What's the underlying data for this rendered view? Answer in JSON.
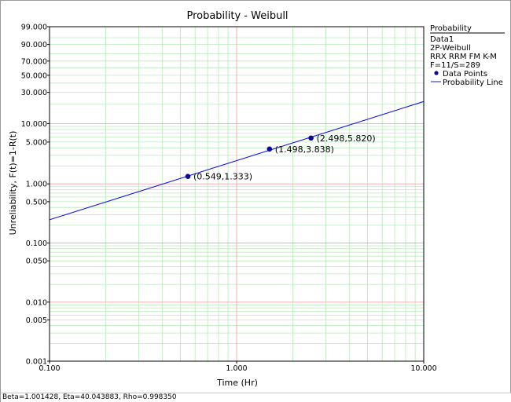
{
  "chart_data": {
    "type": "line",
    "title": "Probability - Weibull",
    "xlabel": "Time (Hr)",
    "ylabel": "Unreliability, F(t)=1-R(t)",
    "x_scale": "log",
    "y_scale": "weibull",
    "xlim": [
      0.1,
      10
    ],
    "ylim": [
      0.001,
      99
    ],
    "x_ticks": [
      "0.100",
      "1.000",
      "10.000"
    ],
    "y_ticks": [
      "99.000",
      "90.000",
      "70.000",
      "50.000",
      "30.000",
      "10.000",
      "5.000",
      "1.000",
      "0.500",
      "0.100",
      "0.050",
      "0.010",
      "0.005",
      "0.001"
    ],
    "y_tick_values": [
      99,
      90,
      70,
      50,
      30,
      10,
      5,
      1,
      0.5,
      0.1,
      0.05,
      0.01,
      0.005,
      0.001
    ],
    "grid": true,
    "colors": {
      "major_grid": "#f4a6a6",
      "minor_grid": "#b8eab8",
      "series": "#1414e6",
      "points": "#0a0aa0",
      "border": "#000000"
    },
    "series": [
      {
        "name": "Data Points",
        "kind": "points",
        "points": [
          {
            "x": 0.549,
            "y": 1.333,
            "label": "(0.549,1.333)"
          },
          {
            "x": 1.498,
            "y": 3.838,
            "label": "(1.498,3.838)"
          },
          {
            "x": 2.498,
            "y": 5.82,
            "label": "(2.498,5.820)"
          }
        ]
      },
      {
        "name": "Probability Line",
        "kind": "line",
        "beta": 1.001428,
        "eta": 40.043883
      }
    ],
    "legend": {
      "position": "right",
      "title": "Probability",
      "lines": [
        "Data1",
        "2P-Weibull",
        "RRX RRM FM K-M",
        "F=11/S=289"
      ],
      "entries": [
        "Data Points",
        "Probability Line"
      ]
    }
  },
  "status_bar": "Beta=1.001428, Eta=40.043883, Rho=0.998350"
}
